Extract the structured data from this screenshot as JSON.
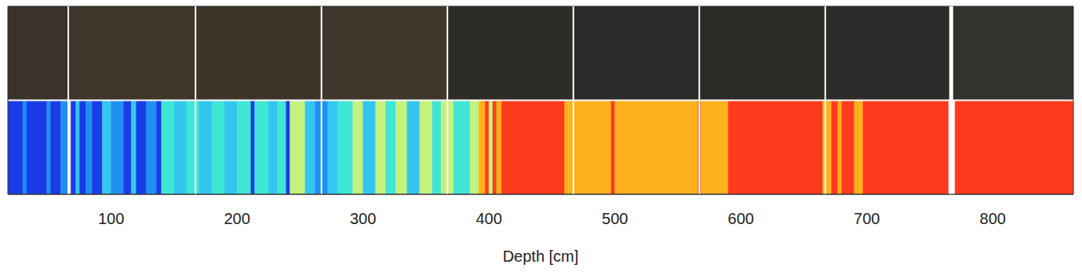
{
  "chart_data": {
    "type": "strip",
    "x_label": "Depth [cm]",
    "xlim": [
      18,
      864
    ],
    "xticks": [
      100,
      200,
      300,
      400,
      500,
      600,
      700,
      800
    ],
    "tick_labels": "x",
    "photo": {
      "bounds": [
        18,
        66,
        167,
        267,
        367,
        467,
        567,
        667,
        767,
        864
      ],
      "colors": [
        "#3a3329",
        "#3f352a",
        "#3d3429",
        "#3f362c",
        "#2d2c29",
        "#2b2b29",
        "#2c2b28",
        "#2d2c2a",
        "#33322f"
      ]
    },
    "strip": {
      "bounds": [
        18,
        30,
        33,
        49,
        52,
        60,
        66,
        68,
        72,
        75,
        80,
        85,
        93,
        100,
        110,
        116,
        120,
        128,
        136,
        140,
        150,
        160,
        170,
        180,
        190,
        200,
        211,
        214,
        225,
        232,
        239,
        242,
        254,
        262,
        272,
        280,
        292,
        300,
        310,
        318,
        326,
        335,
        345,
        355,
        362,
        372,
        385,
        392,
        397,
        400,
        403,
        406,
        410,
        460,
        463,
        497,
        500,
        566,
        568,
        590,
        665,
        672,
        677,
        680,
        686,
        690,
        697,
        765,
        770,
        864
      ],
      "colors": [
        "#1a3ce6",
        "#1f8ff2",
        "#1a3ce6",
        "#1f8ff2",
        "#1a3ce6",
        "#1f8ff2",
        "#ffffff",
        "#1a3ce6",
        "#35c6ef",
        "#1a3ce6",
        "#1f8ff2",
        "#1a3ce6",
        "#35c6ef",
        "#1f8ff2",
        "#1a3ce6",
        "#35c6ef",
        "#1a3ce6",
        "#1f8ff2",
        "#1a3ce6",
        "#3fe6d6",
        "#35c6ef",
        "#3fe6d6",
        "#35c6ef",
        "#3fe6d6",
        "#35c6ef",
        "#3fe6d6",
        "#1a3ce6",
        "#3fe6d6",
        "#35c6ef",
        "#3fe6d6",
        "#1a3ce6",
        "#c4f27e",
        "#35c6ef",
        "#1f8ff2",
        "#35c6ef",
        "#3fe6d6",
        "#c4f27e",
        "#35c6ef",
        "#c4f27e",
        "#3fe6d6",
        "#c4f27e",
        "#35c6ef",
        "#c4f27e",
        "#3fe6d6",
        "#c4f27e",
        "#3fe6d6",
        "#c4f27e",
        "#ffb01e",
        "#ff3b1d",
        "#c4f27e",
        "#ff3b1d",
        "#ffb01e",
        "#ff3b1d",
        "#ffb01e",
        "#ffb01e",
        "#ff3b1d",
        "#ffb01e",
        "#ff3b1d",
        "#ffb01e",
        "#ff3b1d",
        "#ffb01e",
        "#ff3b1d",
        "#ffb01e",
        "#ff3b1d",
        "#ff3b1d",
        "#ffb01e",
        "#ff3b1d",
        "#ffffff",
        "#ff3b1d"
      ]
    }
  }
}
